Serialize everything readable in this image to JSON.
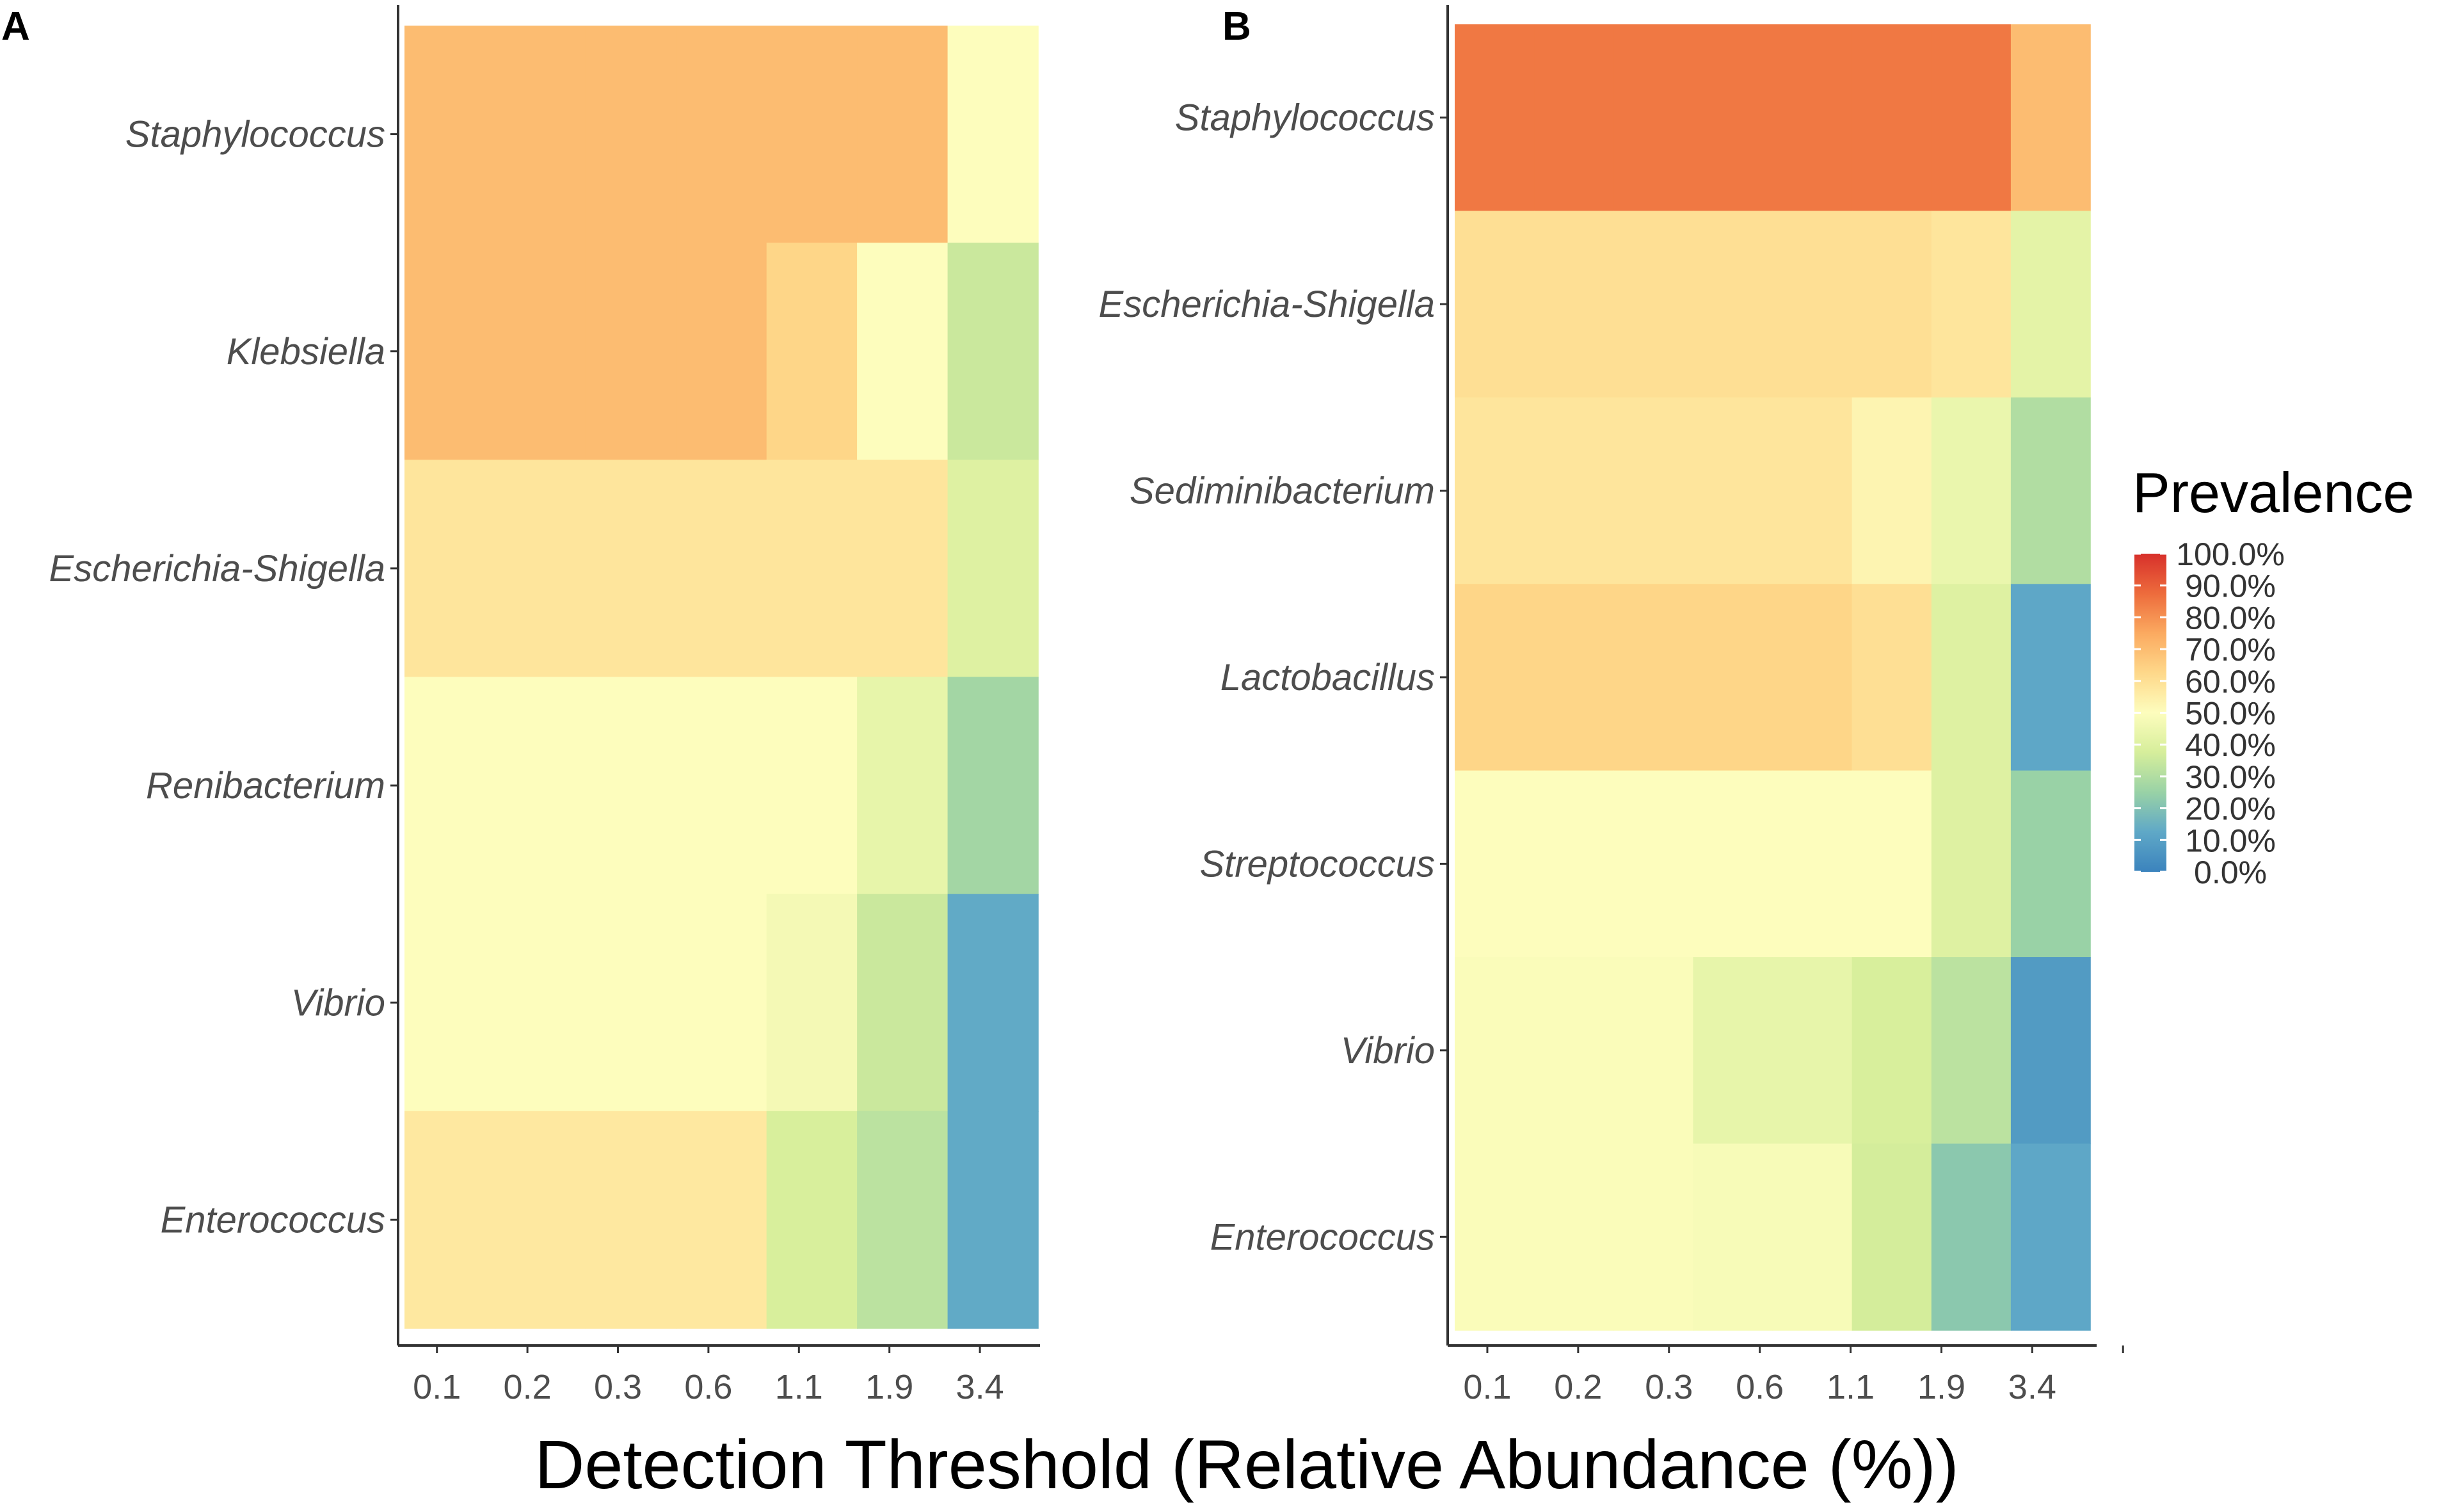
{
  "x_axis_title": "Detection Threshold (Relative Abundance (%))",
  "chart_data": [
    {
      "type": "heatmap",
      "panel": "A",
      "x_categories": [
        "0.1",
        "0.2",
        "0.3",
        "0.6",
        "1.1",
        "1.9",
        "3.4"
      ],
      "y_categories": [
        "Staphylococcus",
        "Klebsiella",
        "Escherichia-Shigella",
        "Renibacterium",
        "Vibrio",
        "Enterococcus"
      ],
      "values": [
        [
          70,
          70,
          70,
          70,
          70,
          70,
          50
        ],
        [
          70,
          70,
          70,
          70,
          63,
          50,
          35
        ],
        [
          58,
          58,
          58,
          58,
          58,
          58,
          40
        ],
        [
          50,
          50,
          50,
          50,
          50,
          43,
          27
        ],
        [
          50,
          50,
          50,
          50,
          47,
          35,
          13
        ],
        [
          57,
          57,
          57,
          57,
          38,
          32,
          13
        ]
      ],
      "xlabel": "Detection Threshold (Relative Abundance (%))",
      "ylabel": ""
    },
    {
      "type": "heatmap",
      "panel": "B",
      "x_categories": [
        "0.1",
        "0.2",
        "0.3",
        "0.6",
        "1.1",
        "1.9",
        "3.4",
        ""
      ],
      "y_categories": [
        "Staphylococcus",
        "Escherichia-Shigella",
        "Sediminibacterium",
        "Lactobacillus",
        "Streptococcus",
        "Vibrio",
        "Enterococcus"
      ],
      "values": [
        [
          85,
          85,
          85,
          85,
          85,
          85,
          85,
          70
        ],
        [
          60,
          60,
          60,
          60,
          60,
          60,
          58,
          42
        ],
        [
          58,
          58,
          58,
          58,
          58,
          53,
          44,
          30
        ],
        [
          63,
          63,
          63,
          63,
          63,
          60,
          40,
          12
        ],
        [
          50,
          50,
          50,
          50,
          50,
          50,
          40,
          25
        ],
        [
          49,
          49,
          49,
          43,
          43,
          38,
          32,
          8
        ],
        [
          49,
          49,
          49,
          48,
          48,
          37,
          22,
          12
        ]
      ],
      "xlabel": "Detection Threshold (Relative Abundance (%))",
      "ylabel": ""
    }
  ],
  "legend": {
    "title": "Prevalence",
    "ticks": [
      "100.0%",
      "90.0%",
      "80.0%",
      "70.0%",
      "60.0%",
      "50.0%",
      "40.0%",
      "30.0%",
      "20.0%",
      "10.0%",
      "0.0%"
    ],
    "range": [
      0,
      100
    ]
  },
  "colors": {
    "scale": [
      "#3b83bd",
      "#5fa8c7",
      "#99d2a6",
      "#d6ee9b",
      "#fdfdbd",
      "#fed88a",
      "#fbaa60",
      "#ed6b3c",
      "#d7302b"
    ]
  }
}
